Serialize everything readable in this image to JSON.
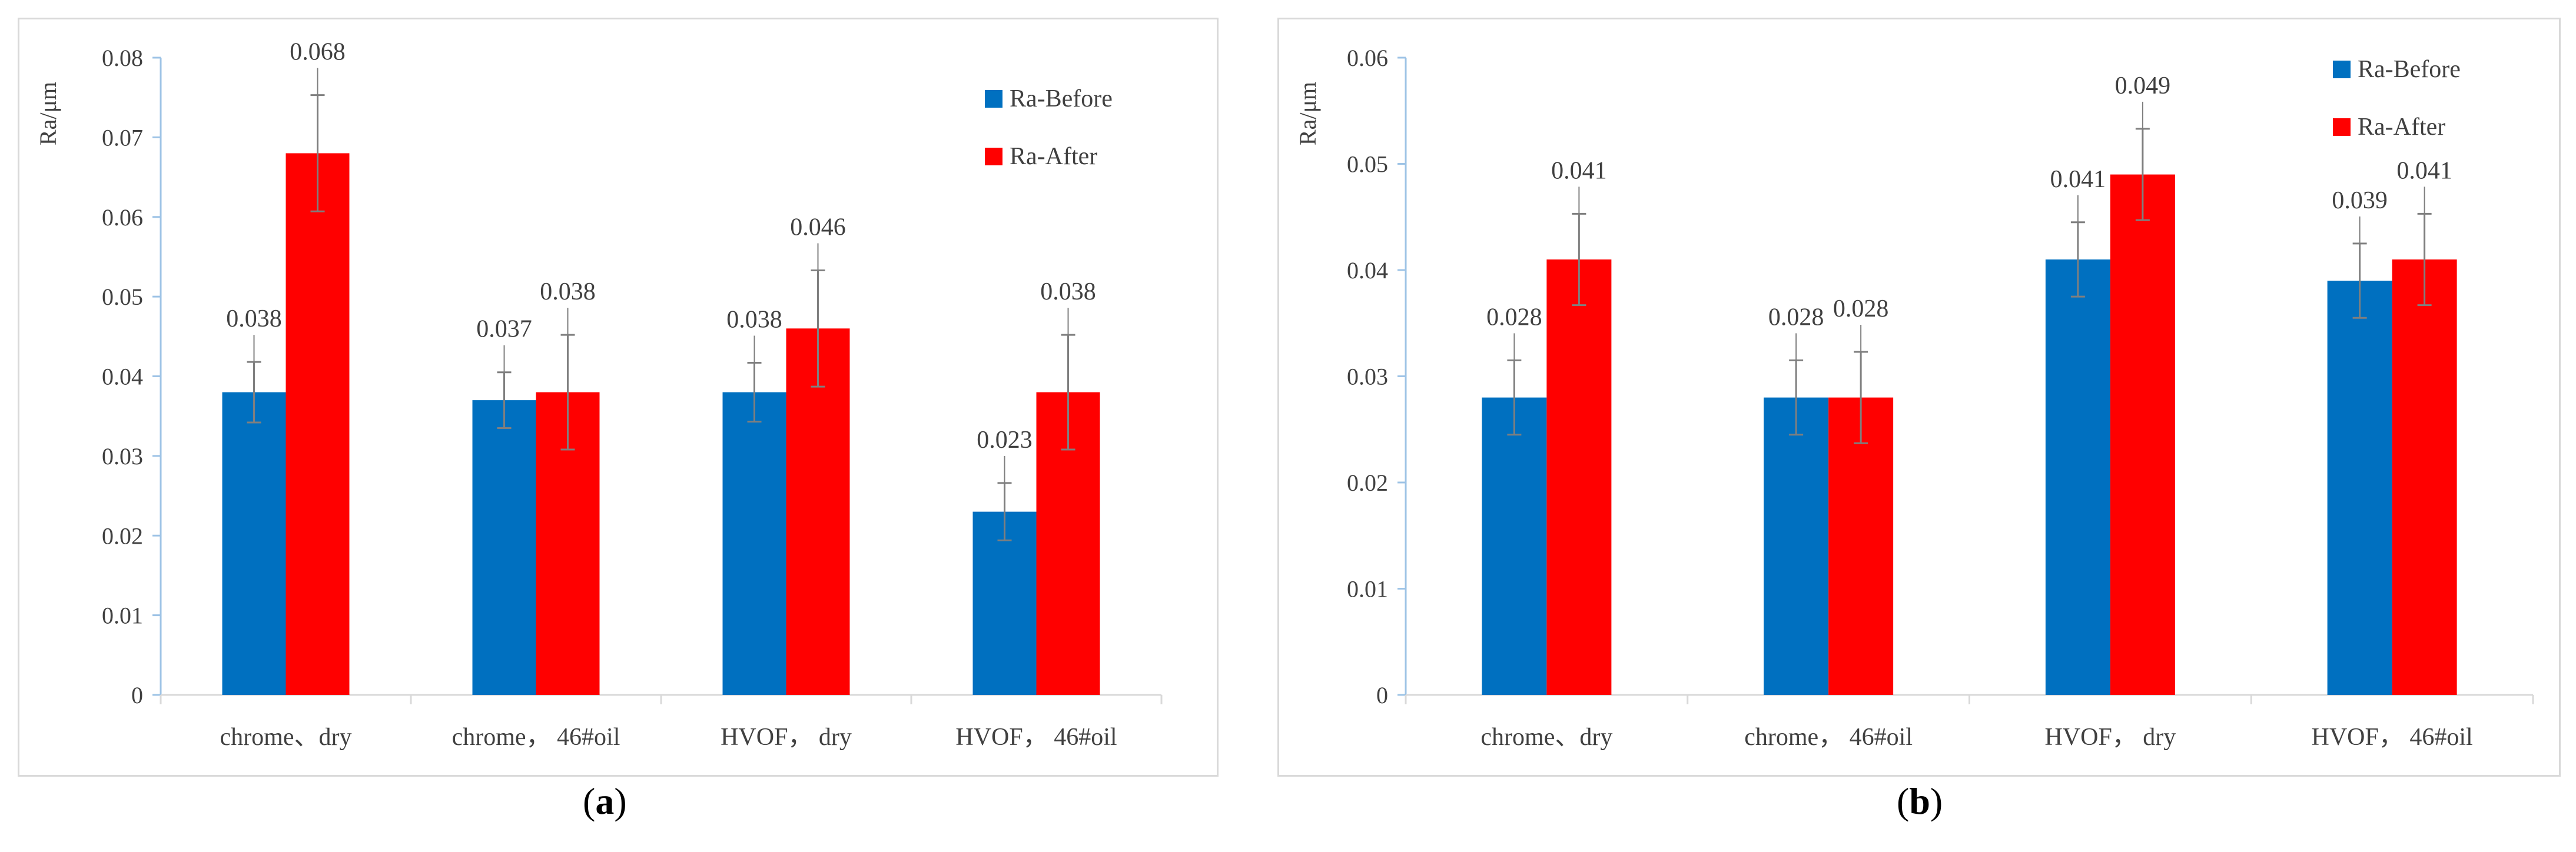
{
  "chart_data": [
    {
      "type": "bar",
      "panel": "a",
      "caption": "a",
      "ylabel": "Ra/μm",
      "xlabel": "",
      "ylim": [
        0,
        0.08
      ],
      "ytick_step": 0.01,
      "ytick_labels": [
        "0",
        "0.01",
        "0.02",
        "0.03",
        "0.04",
        "0.05",
        "0.06",
        "0.07",
        "0.08"
      ],
      "categories": [
        "chrome、dry",
        "chrome，  46#oil",
        "HVOF，  dry",
        "HVOF，  46#oil"
      ],
      "series": [
        {
          "name": "Ra-Before",
          "color": "#0070C0",
          "values": [
            0.038,
            0.037,
            0.038,
            0.023
          ],
          "errors": [
            0.0038,
            0.0035,
            0.0037,
            0.0036
          ],
          "labels": [
            "0.038",
            "0.037",
            "0.038",
            "0.023"
          ]
        },
        {
          "name": "Ra-After",
          "color": "#FF0000",
          "values": [
            0.068,
            0.038,
            0.046,
            0.038
          ],
          "errors": [
            0.0073,
            0.0072,
            0.0073,
            0.0072
          ],
          "labels": [
            "0.068",
            "0.038",
            "0.046",
            "0.038"
          ]
        }
      ],
      "legend": "top-right"
    },
    {
      "type": "bar",
      "panel": "b",
      "caption": "b",
      "ylabel": "Ra/μm",
      "xlabel": "",
      "ylim": [
        0,
        0.06
      ],
      "ytick_step": 0.01,
      "ytick_labels": [
        "0",
        "0.01",
        "0.02",
        "0.03",
        "0.04",
        "0.05",
        "0.06"
      ],
      "categories": [
        "chrome、dry",
        "chrome，  46#oil",
        "HVOF，  dry",
        "HVOF，  46#oil"
      ],
      "series": [
        {
          "name": "Ra-Before",
          "color": "#0070C0",
          "values": [
            0.028,
            0.028,
            0.041,
            0.039
          ],
          "errors": [
            0.0035,
            0.0035,
            0.0035,
            0.0035
          ],
          "labels": [
            "0.028",
            "0.028",
            "0.041",
            "0.039"
          ]
        },
        {
          "name": "Ra-After",
          "color": "#FF0000",
          "values": [
            0.041,
            0.028,
            0.049,
            0.041
          ],
          "errors": [
            0.0043,
            0.0043,
            0.0043,
            0.0043
          ],
          "labels": [
            "0.041",
            "0.028",
            "0.049",
            "0.041"
          ]
        }
      ],
      "legend": "top-right"
    }
  ]
}
